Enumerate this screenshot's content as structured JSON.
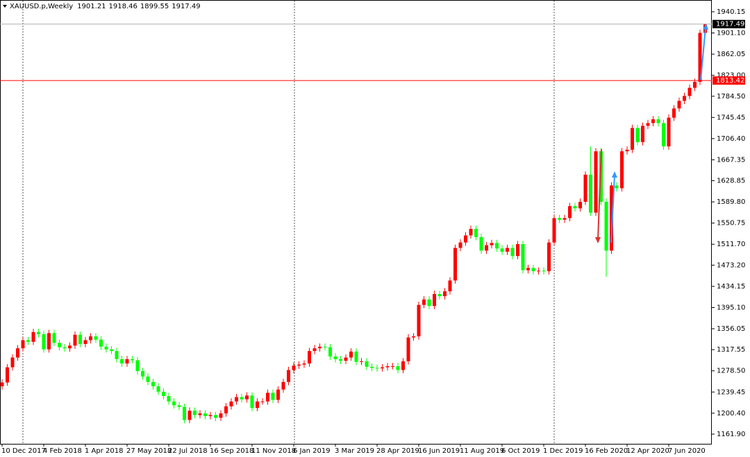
{
  "chart_data": {
    "type": "candlestick",
    "symbol": "XAUUSD.p,Weekly",
    "bull_color": "#ff0000",
    "bear_color": "#00ff00",
    "level_price": 1813.42,
    "level_color": "#ff0000",
    "ylim": [
      1142.7,
      1958
    ],
    "yticks": [
      1940.15,
      {
        "value": 1901.1,
        "label": "1901.10"
      },
      1862.05,
      {
        "value": 1823,
        "label": "1823.00"
      },
      {
        "value": 1784.5,
        "label": "1784.50"
      },
      1745.45,
      {
        "value": 1706.4,
        "label": "1706.40"
      },
      1667.35,
      1628.85,
      {
        "value": 1589.8,
        "label": "1589.80"
      },
      1550.75,
      {
        "value": 1511.7,
        "label": "1511.70"
      },
      {
        "value": 1473.2,
        "label": "1473.20"
      },
      1434.15,
      {
        "value": 1395.1,
        "label": "1395.10"
      },
      1356.05,
      1317.55,
      {
        "value": 1278.5,
        "label": "1278.50"
      },
      1239.45,
      {
        "value": 1200.4,
        "label": "1200.40"
      },
      {
        "value": 1161.9,
        "label": "1161.90"
      }
    ],
    "categories": [
      "10 Dec 2017",
      null,
      null,
      null,
      null,
      null,
      null,
      null,
      "4 Feb 2018",
      null,
      null,
      null,
      null,
      null,
      null,
      null,
      "1 Apr 2018",
      null,
      null,
      null,
      null,
      null,
      null,
      null,
      "27 May 2018",
      null,
      null,
      null,
      null,
      null,
      null,
      null,
      "22 Jul 2018",
      null,
      null,
      null,
      null,
      null,
      null,
      null,
      "16 Sep 2018",
      null,
      null,
      null,
      null,
      null,
      null,
      null,
      "11 Nov 2018",
      null,
      null,
      null,
      null,
      null,
      null,
      null,
      "6 Jan 2019",
      null,
      null,
      null,
      null,
      null,
      null,
      null,
      "3 Mar 2019",
      null,
      null,
      null,
      null,
      null,
      null,
      null,
      "28 Apr 2019",
      null,
      null,
      null,
      null,
      null,
      null,
      null,
      "16 Jun 2019",
      null,
      null,
      null,
      null,
      null,
      null,
      null,
      "11 Aug 2019",
      null,
      null,
      null,
      null,
      null,
      null,
      null,
      "6 Oct 2019",
      null,
      null,
      null,
      null,
      null,
      null,
      null,
      "1 Dec 2019",
      null,
      null,
      null,
      null,
      null,
      null,
      null,
      "16 Feb 2020",
      null,
      null,
      null,
      null,
      null,
      null,
      null,
      "12 Apr 2020",
      null,
      null,
      null,
      null,
      null,
      null,
      null,
      "7 Jun 2020",
      null,
      null,
      null,
      null,
      null,
      null,
      null
    ],
    "open": [
      1250,
      1257,
      1285,
      1303,
      1320,
      1335,
      1332,
      1350,
      1346,
      1318,
      1348,
      1330,
      1322,
      1320,
      1325,
      1345,
      1328,
      1335,
      1342,
      1336,
      1323,
      1318,
      1315,
      1300,
      1292,
      1300,
      1298,
      1278,
      1268,
      1258,
      1250,
      1240,
      1232,
      1222,
      1215,
      1212,
      1188,
      1205,
      1197,
      1200,
      1195,
      1197,
      1192,
      1200,
      1213,
      1222,
      1230,
      1226,
      1233,
      1210,
      1222,
      1222,
      1238,
      1225,
      1244,
      1258,
      1280,
      1288,
      1290,
      1292,
      1315,
      1320,
      1323,
      1322,
      1305,
      1300,
      1297,
      1303,
      1314,
      1295,
      1296,
      1286,
      1284,
      1283,
      1285,
      1287,
      1287,
      1280,
      1296,
      1340,
      1342,
      1400,
      1410,
      1398,
      1420,
      1416,
      1425,
      1445,
      1505,
      1515,
      1528,
      1540,
      1525,
      1500,
      1510,
      1514,
      1504,
      1498,
      1505,
      1490,
      1512,
      1464,
      1468,
      1462,
      1463,
      1462,
      1515,
      1560,
      1557,
      1560,
      1582,
      1578,
      1590,
      1640,
      1570,
      1683,
      1590,
      1500,
      1620,
      1615,
      1683,
      1686,
      1726,
      1700,
      1730,
      1735,
      1742,
      1735,
      1692,
      1745,
      1762,
      1776,
      1785,
      1800,
      1811,
      1901.21
    ],
    "high": [
      1263,
      1291,
      1309,
      1326,
      1341,
      1341,
      1356,
      1356,
      1352,
      1354,
      1354,
      1336,
      1328,
      1331,
      1351,
      1351,
      1341,
      1348,
      1348,
      1342,
      1329,
      1324,
      1321,
      1306,
      1306,
      1306,
      1304,
      1284,
      1274,
      1264,
      1256,
      1246,
      1238,
      1228,
      1221,
      1218,
      1211,
      1211,
      1206,
      1206,
      1203,
      1203,
      1206,
      1219,
      1228,
      1236,
      1236,
      1239,
      1239,
      1228,
      1228,
      1244,
      1244,
      1250,
      1264,
      1286,
      1294,
      1296,
      1298,
      1321,
      1326,
      1329,
      1329,
      1328,
      1311,
      1306,
      1309,
      1320,
      1320,
      1302,
      1302,
      1292,
      1290,
      1291,
      1293,
      1293,
      1293,
      1302,
      1346,
      1348,
      1406,
      1416,
      1416,
      1426,
      1426,
      1431,
      1451,
      1511,
      1521,
      1534,
      1546,
      1546,
      1531,
      1516,
      1520,
      1520,
      1510,
      1511,
      1511,
      1518,
      1518,
      1474,
      1474,
      1469,
      1469,
      1521,
      1566,
      1566,
      1566,
      1588,
      1588,
      1596,
      1646,
      1692,
      1689,
      1689,
      1596,
      1626,
      1626,
      1689,
      1692,
      1732,
      1732,
      1736,
      1741,
      1748,
      1748,
      1741,
      1751,
      1768,
      1782,
      1791,
      1806,
      1817,
      1907,
      1918.46
    ],
    "low": [
      1244,
      1251,
      1279,
      1297,
      1314,
      1326,
      1326,
      1340,
      1312,
      1312,
      1324,
      1316,
      1314,
      1314,
      1319,
      1322,
      1322,
      1329,
      1330,
      1317,
      1312,
      1309,
      1294,
      1286,
      1286,
      1292,
      1272,
      1262,
      1252,
      1244,
      1234,
      1226,
      1216,
      1209,
      1206,
      1182,
      1182,
      1191,
      1191,
      1189,
      1189,
      1186,
      1186,
      1194,
      1207,
      1216,
      1220,
      1220,
      1204,
      1204,
      1216,
      1216,
      1219,
      1219,
      1238,
      1252,
      1274,
      1282,
      1284,
      1286,
      1309,
      1314,
      1316,
      1299,
      1294,
      1291,
      1291,
      1297,
      1289,
      1289,
      1280,
      1278,
      1277,
      1277,
      1279,
      1281,
      1274,
      1274,
      1290,
      1334,
      1336,
      1394,
      1392,
      1392,
      1410,
      1410,
      1419,
      1439,
      1499,
      1509,
      1522,
      1519,
      1494,
      1494,
      1504,
      1498,
      1492,
      1492,
      1484,
      1484,
      1458,
      1458,
      1456,
      1456,
      1456,
      1456,
      1509,
      1551,
      1551,
      1554,
      1572,
      1572,
      1584,
      1564,
      1564,
      1584,
      1452,
      1494,
      1609,
      1609,
      1677,
      1680,
      1694,
      1694,
      1724,
      1729,
      1729,
      1686,
      1686,
      1739,
      1756,
      1770,
      1779,
      1794,
      1805,
      1899.55
    ],
    "close": [
      1257,
      1285,
      1303,
      1320,
      1335,
      1332,
      1350,
      1346,
      1318,
      1348,
      1330,
      1322,
      1320,
      1325,
      1345,
      1328,
      1335,
      1342,
      1336,
      1323,
      1318,
      1315,
      1300,
      1292,
      1300,
      1298,
      1278,
      1268,
      1258,
      1250,
      1240,
      1232,
      1222,
      1215,
      1212,
      1188,
      1205,
      1197,
      1200,
      1195,
      1197,
      1192,
      1200,
      1213,
      1222,
      1230,
      1226,
      1233,
      1210,
      1222,
      1222,
      1238,
      1225,
      1244,
      1258,
      1280,
      1288,
      1290,
      1292,
      1315,
      1320,
      1323,
      1322,
      1305,
      1300,
      1297,
      1303,
      1314,
      1295,
      1296,
      1286,
      1284,
      1283,
      1285,
      1287,
      1287,
      1280,
      1296,
      1340,
      1342,
      1400,
      1410,
      1398,
      1420,
      1416,
      1425,
      1445,
      1505,
      1515,
      1528,
      1540,
      1525,
      1500,
      1510,
      1514,
      1504,
      1498,
      1505,
      1490,
      1512,
      1464,
      1468,
      1462,
      1463,
      1462,
      1515,
      1560,
      1557,
      1560,
      1582,
      1578,
      1590,
      1640,
      1570,
      1683,
      1590,
      1500,
      1620,
      1615,
      1683,
      1686,
      1726,
      1700,
      1730,
      1735,
      1742,
      1735,
      1692,
      1745,
      1762,
      1776,
      1785,
      1800,
      1811,
      1901.21,
      1917.49
    ]
  }
}
